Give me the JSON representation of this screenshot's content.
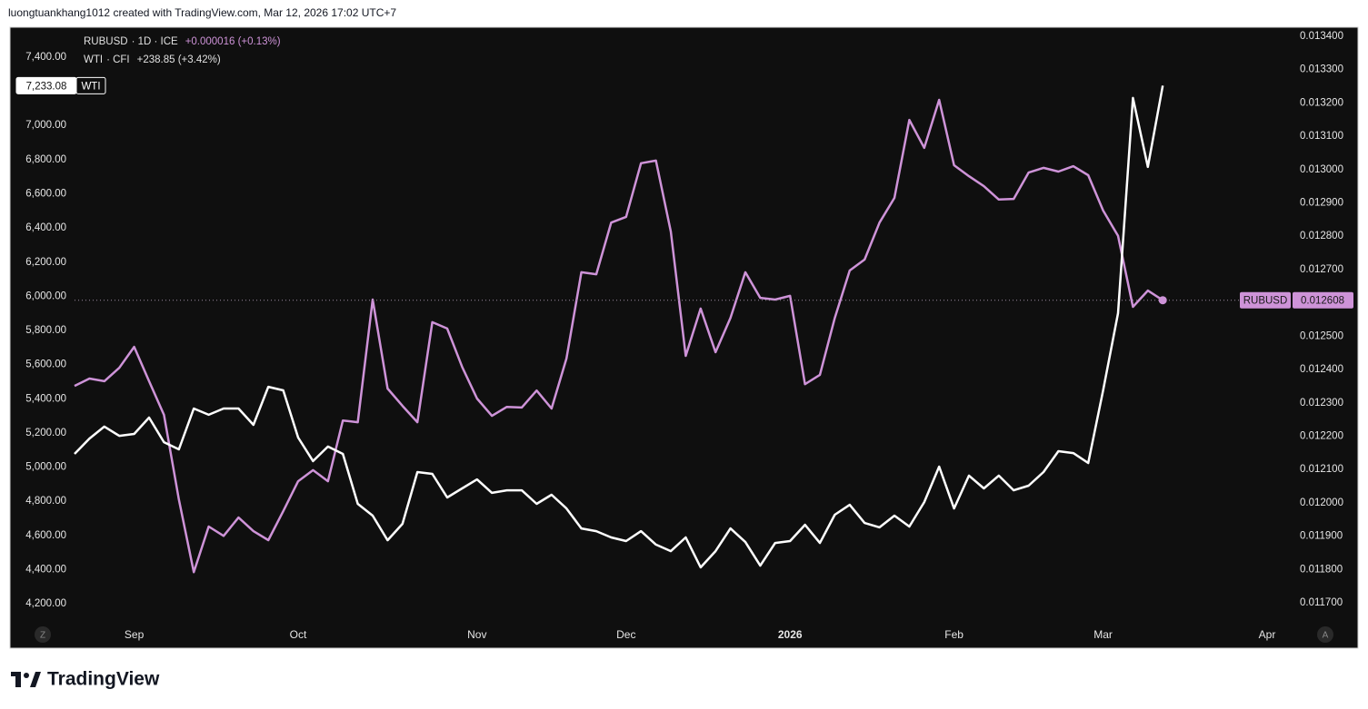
{
  "header": {
    "text": "luongtuankhang1012 created with TradingView.com, Mar 12, 2026 17:02 UTC+7"
  },
  "footer": {
    "brand": "TradingView"
  },
  "controls": {
    "left_button": "Z",
    "right_button": "A"
  },
  "chart_data": {
    "type": "line",
    "categories": [
      null,
      null,
      null,
      null,
      "Sep",
      null,
      null,
      null,
      null,
      null,
      null,
      null,
      null,
      null,
      null,
      "Oct",
      null,
      null,
      null,
      null,
      null,
      null,
      null,
      null,
      null,
      null,
      null,
      "Nov",
      null,
      null,
      null,
      null,
      null,
      null,
      null,
      null,
      null,
      "Dec",
      null,
      null,
      null,
      null,
      null,
      null,
      null,
      null,
      null,
      null,
      "2026",
      null,
      null,
      null,
      null,
      null,
      null,
      null,
      null,
      null,
      null,
      "Feb",
      null,
      null,
      null,
      null,
      null,
      null,
      null,
      null,
      null,
      "Mar",
      null,
      null,
      null,
      null,
      null,
      null,
      null,
      null,
      null,
      null,
      "Apr"
    ],
    "series": [
      {
        "name": "RUBUSD",
        "source": "· 1D · ICE",
        "change": "+0.000016 (+0.13%)",
        "axis": "y2",
        "color": "#ce93d8",
        "last_label": "0.012608",
        "values": [
          0.012351,
          0.012373,
          0.012365,
          0.012405,
          0.012468,
          0.012365,
          0.012264,
          0.01201,
          0.011792,
          0.011929,
          0.011901,
          0.011956,
          0.011915,
          0.011888,
          0.011975,
          0.012065,
          0.012098,
          0.012065,
          0.012247,
          0.012242,
          0.01261,
          0.012343,
          0.012291,
          0.012242,
          0.012542,
          0.012523,
          0.012408,
          0.012313,
          0.012261,
          0.012288,
          0.012286,
          0.012337,
          0.012283,
          0.012433,
          0.012692,
          0.012686,
          0.012841,
          0.012858,
          0.013019,
          0.013027,
          0.012814,
          0.012441,
          0.012583,
          0.012452,
          0.012555,
          0.012692,
          0.012615,
          0.01261,
          0.012621,
          0.012356,
          0.012384,
          0.012555,
          0.012697,
          0.01273,
          0.012841,
          0.012915,
          0.013149,
          0.013065,
          0.013209,
          0.013013,
          0.01298,
          0.01295,
          0.01291,
          0.012912,
          0.012991,
          0.013005,
          0.012994,
          0.01301,
          0.012983,
          0.012877,
          0.012801,
          0.012588,
          0.012637,
          0.012608,
          null,
          null,
          null,
          null,
          null,
          null,
          null
        ]
      },
      {
        "name": "WTI",
        "source": "· CFI",
        "change": "+238.85 (+3.42%)",
        "axis": "y",
        "color": "#ffffff",
        "last_label": "7,233.08",
        "values": [
          5077,
          5167,
          5237,
          5183,
          5194,
          5290,
          5146,
          5104,
          5343,
          5306,
          5343,
          5343,
          5247,
          5470,
          5449,
          5173,
          5035,
          5120,
          5077,
          4785,
          4716,
          4572,
          4668,
          4971,
          4960,
          4822,
          4875,
          4928,
          4849,
          4864,
          4864,
          4785,
          4838,
          4758,
          4641,
          4625,
          4588,
          4567,
          4625,
          4546,
          4508,
          4588,
          4413,
          4508,
          4641,
          4561,
          4423,
          4556,
          4567,
          4662,
          4556,
          4721,
          4779,
          4673,
          4647,
          4716,
          4652,
          4795,
          5003,
          4758,
          4950,
          4875,
          4950,
          4864,
          4891,
          4971,
          5093,
          5082,
          5024,
          5449,
          5901,
          7161,
          6757,
          7233.08,
          null,
          null,
          null,
          null,
          null,
          null,
          null
        ]
      }
    ],
    "ylim": [
      4094,
      7575
    ],
    "yticks": [
      {
        "value": 4200,
        "label": "4,200.00"
      },
      {
        "value": 4400,
        "label": "4,400.00"
      },
      {
        "value": 4600,
        "label": "4,600.00"
      },
      {
        "value": 4800,
        "label": "4,800.00"
      },
      {
        "value": 5000,
        "label": "5,000.00"
      },
      {
        "value": 5200,
        "label": "5,200.00"
      },
      {
        "value": 5400,
        "label": "5,400.00"
      },
      {
        "value": 5600,
        "label": "5,600.00"
      },
      {
        "value": 5800,
        "label": "5,800.00"
      },
      {
        "value": 6000,
        "label": "6,000.00"
      },
      {
        "value": 6200,
        "label": "6,200.00"
      },
      {
        "value": 6400,
        "label": "6,400.00"
      },
      {
        "value": 6600,
        "label": "6,600.00"
      },
      {
        "value": 6800,
        "label": "6,800.00"
      },
      {
        "value": 7000,
        "label": "7,000.00"
      },
      {
        "value": 7400,
        "label": "7,400.00"
      }
    ],
    "y2lim": [
      0.011643,
      0.013427
    ],
    "y2ticks": [
      {
        "value": 0.0117,
        "label": "0.011700"
      },
      {
        "value": 0.0118,
        "label": "0.011800"
      },
      {
        "value": 0.0119,
        "label": "0.011900"
      },
      {
        "value": 0.012,
        "label": "0.012000"
      },
      {
        "value": 0.0121,
        "label": "0.012100"
      },
      {
        "value": 0.0122,
        "label": "0.012200"
      },
      {
        "value": 0.0123,
        "label": "0.012300"
      },
      {
        "value": 0.0124,
        "label": "0.012400"
      },
      {
        "value": 0.0125,
        "label": "0.012500"
      },
      {
        "value": 0.0126,
        "label": "0.012600"
      },
      {
        "value": 0.0127,
        "label": "0.012700"
      },
      {
        "value": 0.0128,
        "label": "0.012800"
      },
      {
        "value": 0.0129,
        "label": "0.012900"
      },
      {
        "value": 0.013,
        "label": "0.013000"
      },
      {
        "value": 0.0131,
        "label": "0.013100"
      },
      {
        "value": 0.0132,
        "label": "0.013200"
      },
      {
        "value": 0.0133,
        "label": "0.013300"
      },
      {
        "value": 0.0134,
        "label": "0.013400"
      }
    ],
    "grid": false
  }
}
